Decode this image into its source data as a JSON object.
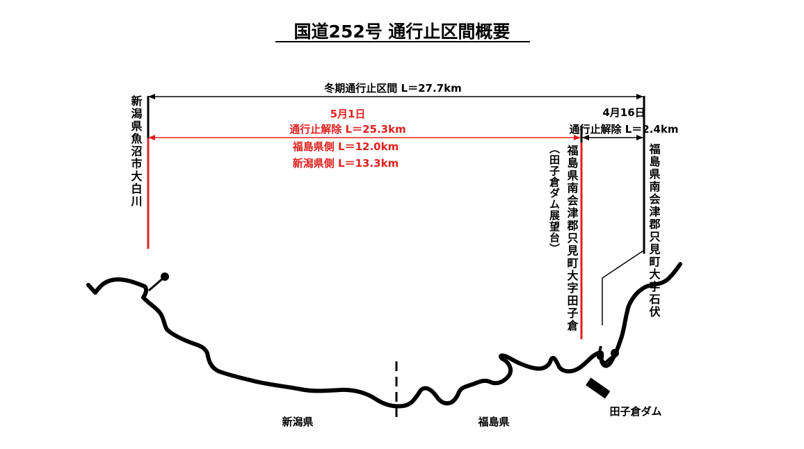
{
  "title": "国道252号  通行止区間概要",
  "winter_closure": {
    "label": "冬期通行止区間 L＝27.7km"
  },
  "may_release": {
    "date": "5月1日",
    "label": "通行止解除 L＝25.3km",
    "fukushima_side": "福島県側 L＝12.0km",
    "niigata_side": "新潟県側 L＝13.3km"
  },
  "april_release": {
    "date": "4月16日",
    "label": "通行止解除 L＝2.4km"
  },
  "place_labels": {
    "niigata_start": "新潟県魚沼市大白川",
    "tagokura_viewpoint": "（田子倉ダム展望台）",
    "fukushima_tagokura": "福島県南会津郡只見町大字田子倉",
    "fukushima_ishibushi": "福島県南会津郡只見町大字石伏"
  },
  "bottom_labels": {
    "niigata": "新潟県",
    "fukushima": "福島県",
    "dam": "田子倉ダム"
  },
  "colors": {
    "release": "#e02020",
    "line": "#000000"
  }
}
